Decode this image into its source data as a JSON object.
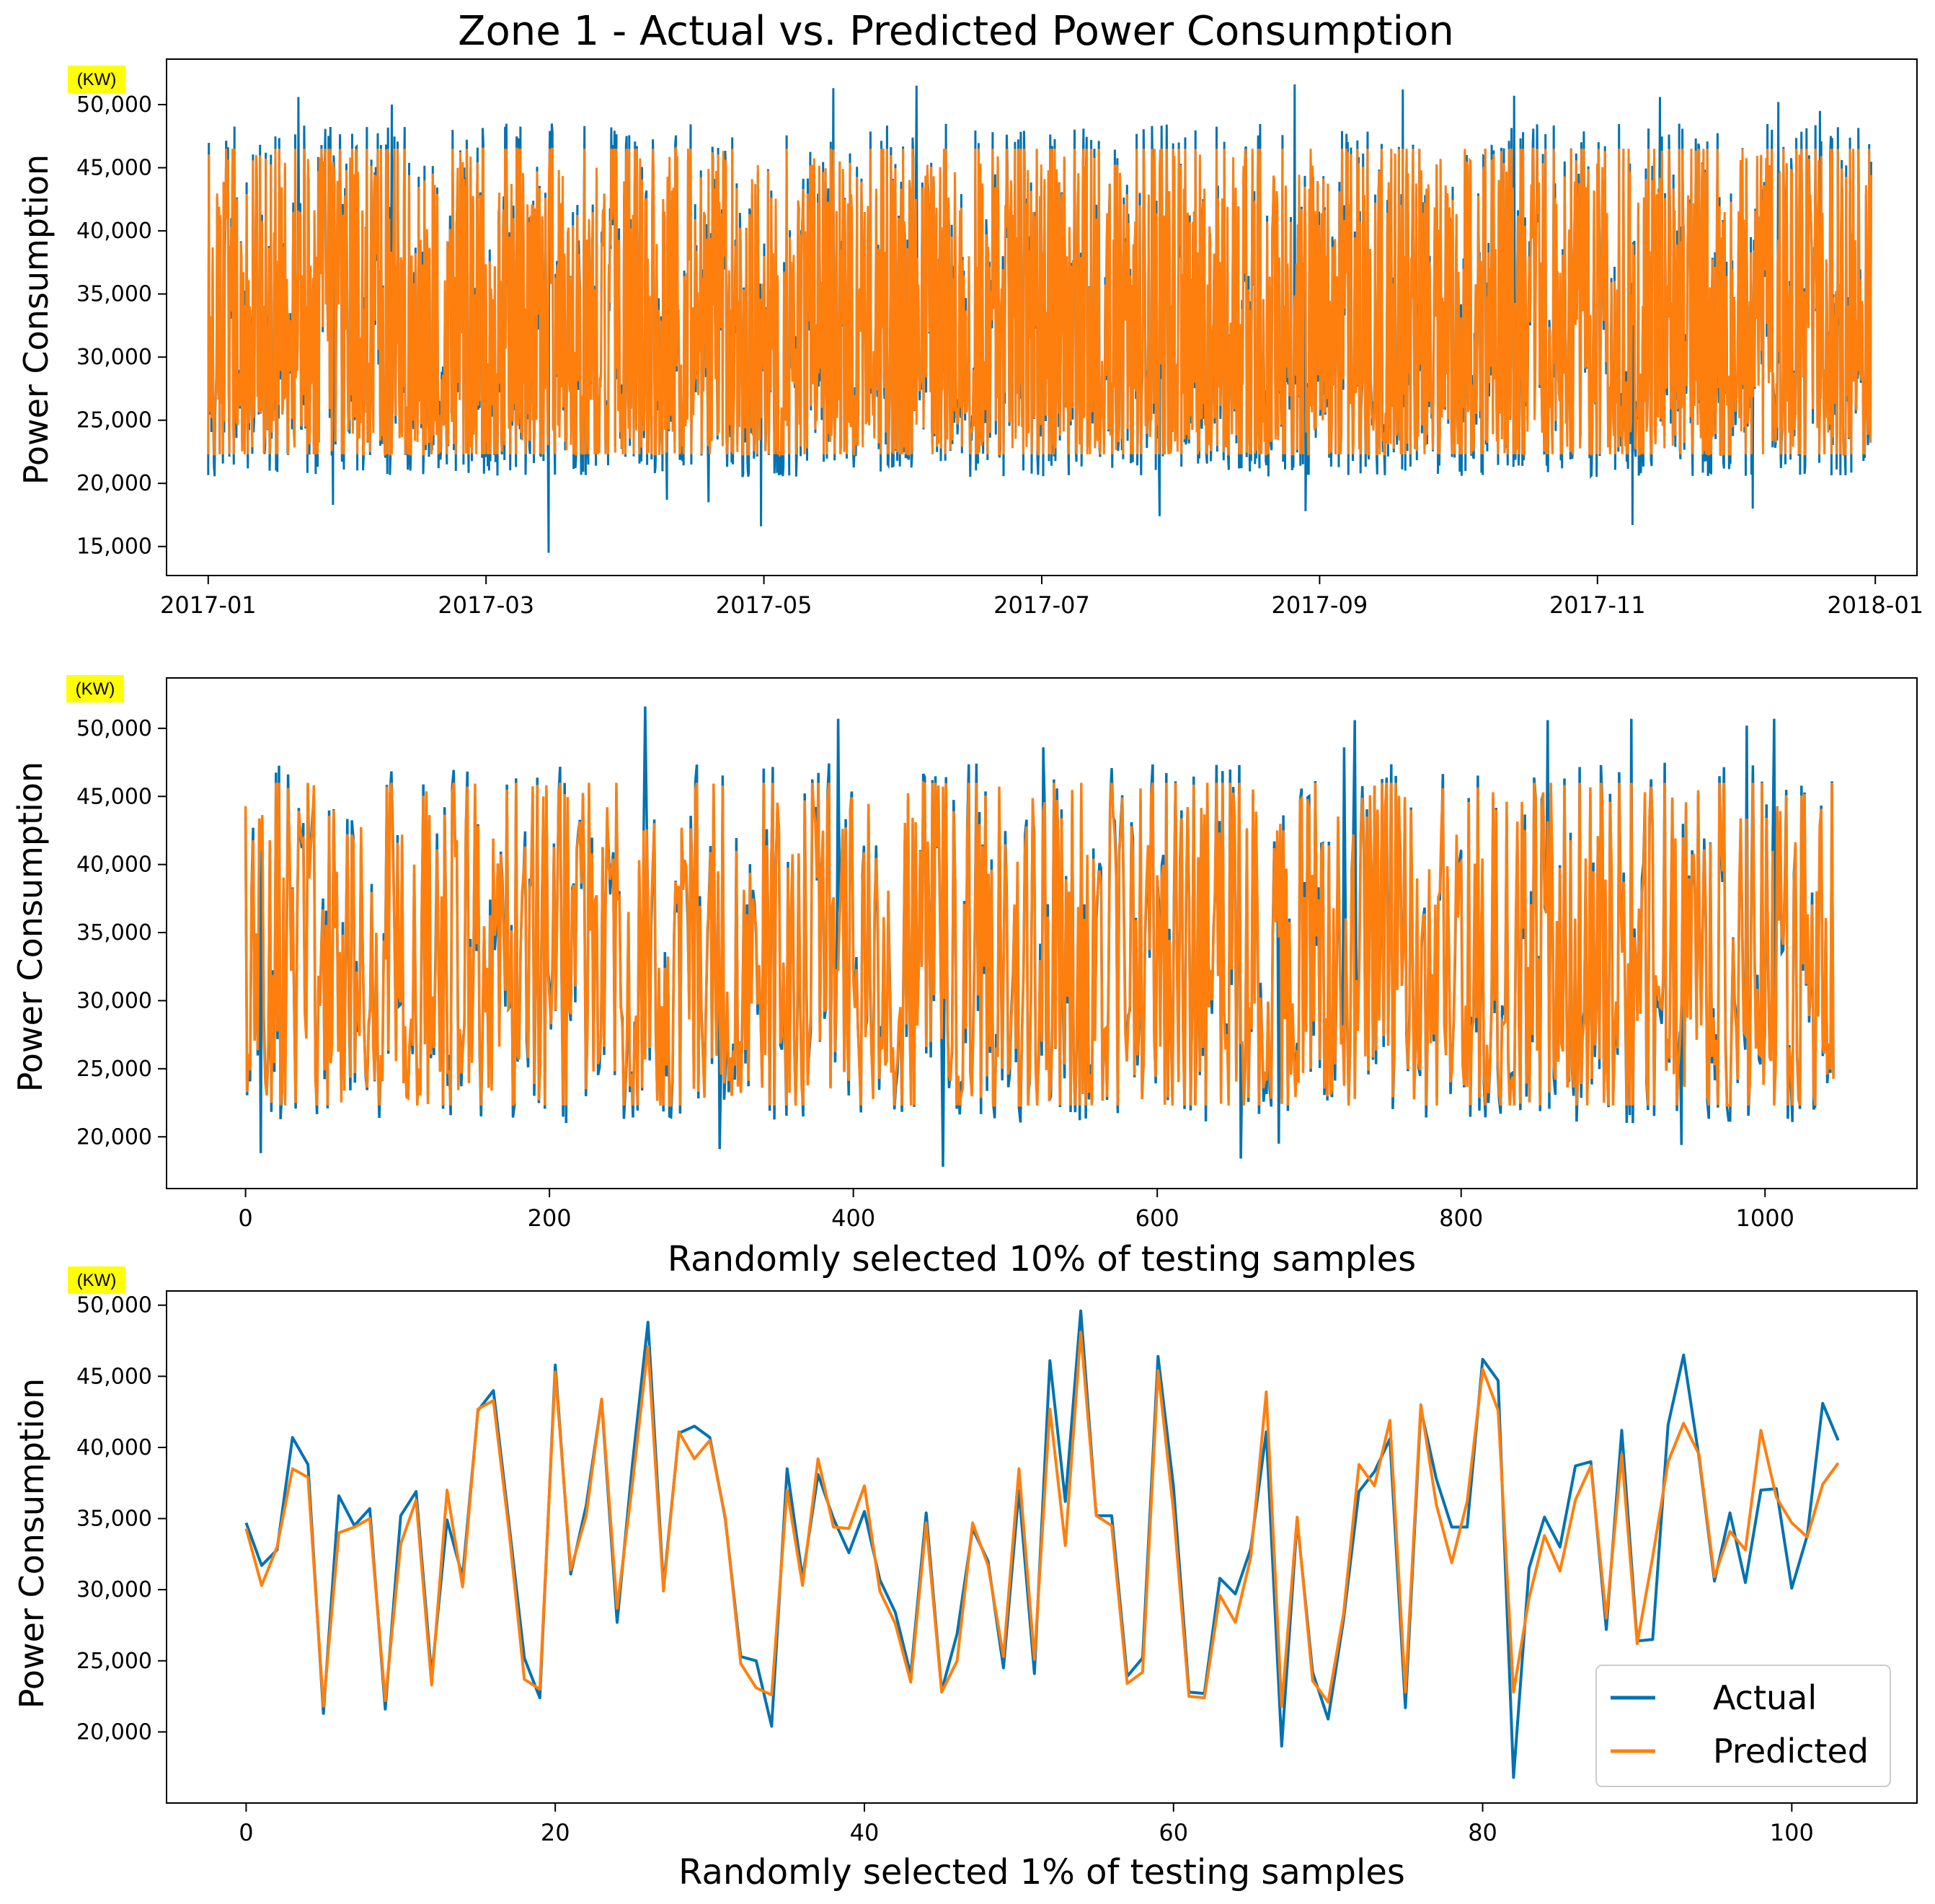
{
  "figure_title": "Zone 1 - Actual vs. Predicted Power Consumption",
  "colors": {
    "actual": "#0072b2",
    "predicted": "#ff7f0e"
  },
  "legend": {
    "actual_label": "Actual",
    "predicted_label": "Predicted",
    "location": "lower-right"
  },
  "chart_data": [
    {
      "type": "line",
      "name": "full-year",
      "title": "Zone 1 - Actual vs. Predicted Power Consumption",
      "unit_badge": "(KW)",
      "ylabel": "Power Consumption",
      "xlabel": "",
      "x_range": [
        -0.3,
        12.3
      ],
      "ylim": [
        12700,
        53600
      ],
      "x_ticks": [
        0,
        2,
        4,
        6,
        8,
        10,
        12
      ],
      "x_tick_labels": [
        "2017-01",
        "2017-03",
        "2017-05",
        "2017-07",
        "2017-09",
        "2017-11",
        "2018-01"
      ],
      "y_ticks": [
        15000,
        20000,
        25000,
        30000,
        35000,
        40000,
        45000,
        50000
      ],
      "y_tick_labels": [
        "15,000",
        "20,000",
        "25,000",
        "30,000",
        "35,000",
        "40,000",
        "45,000",
        "50,000"
      ],
      "x_data_span": [
        0,
        11.97
      ],
      "envelope": {
        "actual_min": 20500,
        "actual_max": 48500,
        "predicted_min": 22300,
        "predicted_max": 46500,
        "base_mean": 33500
      },
      "actual_spikes": [
        {
          "x": 2.45,
          "y": 14500
        },
        {
          "x": 3.3,
          "y": 18700
        },
        {
          "x": 3.6,
          "y": 18500
        },
        {
          "x": 3.98,
          "y": 16600
        },
        {
          "x": 4.5,
          "y": 51300
        },
        {
          "x": 5.1,
          "y": 51500
        },
        {
          "x": 7.82,
          "y": 51600
        },
        {
          "x": 7.9,
          "y": 17800
        },
        {
          "x": 8.6,
          "y": 51200
        },
        {
          "x": 10.25,
          "y": 16700
        },
        {
          "x": 11.12,
          "y": 18000
        },
        {
          "x": 11.6,
          "y": 49500
        },
        {
          "x": 0.65,
          "y": 50600
        },
        {
          "x": 1.32,
          "y": 50000
        },
        {
          "x": 9.4,
          "y": 50700
        },
        {
          "x": 10.45,
          "y": 50600
        },
        {
          "x": 0.9,
          "y": 18300
        },
        {
          "x": 6.85,
          "y": 17400
        },
        {
          "x": 11.3,
          "y": 50200
        }
      ],
      "series": [
        {
          "name": "Actual",
          "color_key": "actual"
        },
        {
          "name": "Predicted",
          "color_key": "predicted"
        }
      ]
    },
    {
      "type": "line",
      "name": "ten-percent-sample",
      "unit_badge": "(KW)",
      "ylabel": "Power Consumption",
      "xlabel": "Randomly selected 10% of testing samples",
      "x_range": [
        -52,
        1100
      ],
      "ylim": [
        16200,
        53700
      ],
      "x_ticks": [
        0,
        200,
        400,
        600,
        800,
        1000
      ],
      "x_tick_labels": [
        "0",
        "200",
        "400",
        "600",
        "800",
        "1000"
      ],
      "y_ticks": [
        20000,
        25000,
        30000,
        35000,
        40000,
        45000,
        50000
      ],
      "y_tick_labels": [
        "20,000",
        "25,000",
        "30,000",
        "35,000",
        "40,000",
        "45,000",
        "50,000"
      ],
      "x_data_span": [
        0,
        1045
      ],
      "envelope": {
        "actual_min": 21000,
        "actual_max": 47500,
        "predicted_min": 22300,
        "predicted_max": 46000,
        "base_mean": 33000
      },
      "actual_spikes": [
        {
          "x": 10,
          "y": 18800
        },
        {
          "x": 263,
          "y": 51600
        },
        {
          "x": 390,
          "y": 50700
        },
        {
          "x": 459,
          "y": 17800
        },
        {
          "x": 525,
          "y": 48600
        },
        {
          "x": 655,
          "y": 18400
        },
        {
          "x": 723,
          "y": 48600
        },
        {
          "x": 730,
          "y": 50600
        },
        {
          "x": 857,
          "y": 50600
        },
        {
          "x": 912,
          "y": 50700
        },
        {
          "x": 988,
          "y": 50200
        },
        {
          "x": 1006,
          "y": 50700
        },
        {
          "x": 945,
          "y": 19400
        },
        {
          "x": 312,
          "y": 19100
        },
        {
          "x": 680,
          "y": 19500
        }
      ],
      "series": [
        {
          "name": "Actual",
          "color_key": "actual"
        },
        {
          "name": "Predicted",
          "color_key": "predicted"
        }
      ]
    },
    {
      "type": "line",
      "name": "one-percent-sample",
      "unit_badge": "(KW)",
      "ylabel": "Power Consumption",
      "xlabel": "Randomly selected 1% of testing samples",
      "x_range": [
        -5.15,
        108.1
      ],
      "ylim": [
        15000,
        51000
      ],
      "x_ticks": [
        0,
        20,
        40,
        60,
        80,
        100
      ],
      "x_tick_labels": [
        "0",
        "20",
        "40",
        "60",
        "80",
        "100"
      ],
      "y_ticks": [
        20000,
        25000,
        30000,
        35000,
        40000,
        45000,
        50000
      ],
      "y_tick_labels": [
        "20,000",
        "25,000",
        "30,000",
        "35,000",
        "40,000",
        "45,000",
        "50,000"
      ],
      "x": [
        0,
        1,
        2,
        3,
        4,
        5,
        6,
        7,
        8,
        9,
        10,
        11,
        12,
        13,
        14,
        15,
        16,
        17,
        18,
        19,
        20,
        21,
        22,
        23,
        24,
        25,
        26,
        27,
        28,
        29,
        30,
        31,
        32,
        33,
        34,
        35,
        36,
        37,
        38,
        39,
        40,
        41,
        42,
        43,
        44,
        45,
        46,
        47,
        48,
        49,
        50,
        51,
        52,
        53,
        54,
        55,
        56,
        57,
        58,
        59,
        60,
        61,
        62,
        63,
        64,
        65,
        66,
        67,
        68,
        69,
        70,
        71,
        72,
        73,
        74,
        75,
        76,
        77,
        78,
        79,
        80,
        81,
        82,
        83,
        84,
        85,
        86,
        87,
        88,
        89,
        90,
        91,
        92,
        93,
        94,
        95,
        96,
        97,
        98,
        99,
        100,
        101,
        102,
        103
      ],
      "series": [
        {
          "name": "Actual",
          "color_key": "actual",
          "values": [
            34700,
            31700,
            32800,
            40700,
            38800,
            21300,
            36600,
            34500,
            35700,
            21600,
            35200,
            36900,
            23900,
            34900,
            30900,
            42600,
            44000,
            34700,
            25200,
            22400,
            45800,
            31100,
            35900,
            43300,
            27700,
            38900,
            48800,
            30200,
            41000,
            41500,
            40700,
            35000,
            25300,
            25000,
            20400,
            38500,
            30800,
            38100,
            35000,
            32600,
            35500,
            30700,
            28400,
            24000,
            35400,
            22900,
            26900,
            34300,
            32000,
            24500,
            37000,
            24100,
            46100,
            36200,
            49600,
            35200,
            35200,
            23900,
            25200,
            46400,
            37200,
            22800,
            22700,
            30800,
            29700,
            32900,
            41100,
            19000,
            34900,
            24200,
            20900,
            27900,
            36900,
            38300,
            40600,
            21700,
            42700,
            37800,
            34400,
            34400,
            46200,
            44700,
            16800,
            31500,
            35100,
            33000,
            38700,
            39000,
            27200,
            41200,
            26400,
            26500,
            41600,
            46500,
            39300,
            30600,
            35400,
            30500,
            37000,
            37100,
            30100,
            33800,
            43100,
            40500
          ]
        },
        {
          "name": "Predicted",
          "color_key": "predicted",
          "values": [
            34300,
            30300,
            33000,
            38500,
            37900,
            21800,
            34000,
            34400,
            35000,
            22200,
            33200,
            36300,
            23300,
            37000,
            30200,
            42700,
            43300,
            34200,
            23700,
            23000,
            45300,
            31400,
            35200,
            43400,
            28700,
            37500,
            47100,
            29900,
            41100,
            39200,
            40500,
            35100,
            24800,
            23100,
            22600,
            37000,
            30300,
            39200,
            34400,
            34300,
            37300,
            29900,
            27600,
            23500,
            34700,
            22800,
            25000,
            34700,
            31700,
            25300,
            38500,
            25100,
            42700,
            33100,
            48100,
            35200,
            34500,
            23400,
            24200,
            45400,
            35500,
            22500,
            22400,
            29600,
            27700,
            32300,
            43900,
            21800,
            35100,
            23600,
            22100,
            28300,
            38800,
            37300,
            41900,
            22800,
            43000,
            36000,
            31900,
            36200,
            45500,
            42600,
            22800,
            29400,
            33800,
            31300,
            36300,
            38700,
            28000,
            39500,
            26200,
            32300,
            39000,
            41700,
            39500,
            30900,
            34100,
            32800,
            41200,
            36500,
            34700,
            33700,
            37400,
            38900
          ]
        }
      ]
    }
  ]
}
